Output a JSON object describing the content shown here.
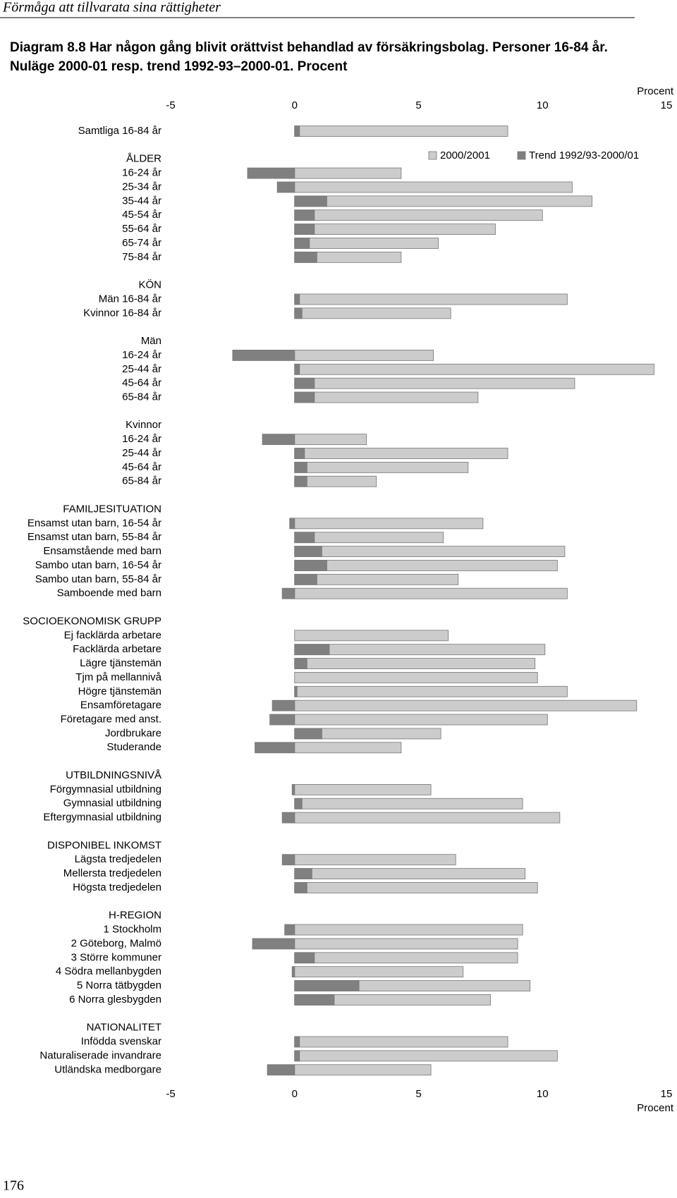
{
  "header": {
    "running_title": "Förmåga att tillvarata sina rättigheter",
    "page_number": "176"
  },
  "chart_data": {
    "type": "bar",
    "orientation": "horizontal",
    "title": "Diagram 8.8  Har någon gång blivit orättvist behandlad av försäkringsbolag. Personer 16-84 år. Nuläge 2000-01 resp. trend 1992-93–2000-01. Procent",
    "xlabel": "Procent",
    "xlim": [
      -5,
      15
    ],
    "xticks": [
      -5,
      0,
      5,
      10,
      15
    ],
    "categories": [
      "Samtliga 16-84 år",
      null,
      "ÅLDER",
      "16-24 år",
      "25-34 år",
      "35-44 år",
      "45-54 år",
      "55-64 år",
      "65-74 år",
      "75-84 år",
      null,
      "KÖN",
      "Män 16-84 år",
      "Kvinnor 16-84 år",
      null,
      "Män",
      "16-24 år",
      "25-44 år",
      "45-64 år",
      "65-84 år",
      null,
      "Kvinnor",
      "16-24 år",
      "25-44 år",
      "45-64 år",
      "65-84 år",
      null,
      "FAMILJESITUATION",
      "Ensamst utan barn, 16-54 år",
      "Ensamst utan barn, 55-84 år",
      "Ensamstående med barn",
      "Sambo utan barn, 16-54 år",
      "Sambo utan barn, 55-84 år",
      "Samboende med barn",
      null,
      "SOCIOEKONOMISK GRUPP",
      "Ej facklärda arbetare",
      "Facklärda arbetare",
      "Lägre tjänstemän",
      "Tjm på mellannivå",
      "Högre tjänstemän",
      "Ensamföretagare",
      "Företagare med anst.",
      "Jordbrukare",
      "Studerande",
      null,
      "UTBILDNINGSNIVÅ",
      "Förgymnasial utbildning",
      "Gymnasial utbildning",
      "Eftergymnasial utbildning",
      null,
      "DISPONIBEL INKOMST",
      "Lägsta tredjedelen",
      "Mellersta tredjedelen",
      "Högsta tredjedelen",
      null,
      "H-REGION",
      "1 Stockholm",
      "2 Göteborg, Malmö",
      "3 Större kommuner",
      "4 Södra mellanbygden",
      "5 Norra tätbygden",
      "6 Norra glesbygden",
      null,
      "NATIONALITET",
      "Infödda svenskar",
      "Naturaliserade invandrare",
      "Utländska medborgare"
    ],
    "series": [
      {
        "name": "2000/2001",
        "color": "#cccccc",
        "values": [
          8.6,
          null,
          null,
          4.3,
          11.2,
          12.0,
          10.0,
          8.1,
          5.8,
          4.3,
          null,
          null,
          11.0,
          6.3,
          null,
          null,
          5.6,
          14.5,
          11.3,
          7.4,
          null,
          null,
          2.9,
          8.6,
          7.0,
          3.3,
          null,
          null,
          7.6,
          6.0,
          10.9,
          10.6,
          6.6,
          11.0,
          null,
          null,
          6.2,
          10.1,
          9.7,
          9.8,
          11.0,
          13.8,
          10.2,
          5.9,
          4.3,
          null,
          null,
          5.5,
          9.2,
          10.7,
          null,
          null,
          6.5,
          9.3,
          9.8,
          null,
          null,
          9.2,
          9.0,
          9.0,
          6.8,
          9.5,
          7.9,
          null,
          null,
          8.6,
          10.6,
          5.5
        ]
      },
      {
        "name": "Trend 1992/93-2000/01",
        "color": "#808080",
        "values": [
          0.2,
          null,
          null,
          -1.9,
          -0.7,
          1.3,
          0.8,
          0.8,
          0.6,
          0.9,
          null,
          null,
          0.2,
          0.3,
          null,
          null,
          -2.5,
          0.2,
          0.8,
          0.8,
          null,
          null,
          -1.3,
          0.4,
          0.5,
          0.5,
          null,
          null,
          -0.2,
          0.8,
          1.1,
          1.3,
          0.9,
          -0.5,
          null,
          null,
          0,
          1.4,
          0.5,
          0,
          0.1,
          -0.9,
          -1.0,
          1.1,
          -1.6,
          null,
          null,
          -0.1,
          0.3,
          -0.5,
          null,
          null,
          -0.5,
          0.7,
          0.5,
          null,
          null,
          -0.4,
          -1.7,
          0.8,
          -0.1,
          2.6,
          1.6,
          null,
          null,
          0.2,
          0.2,
          -1.1
        ]
      }
    ]
  }
}
